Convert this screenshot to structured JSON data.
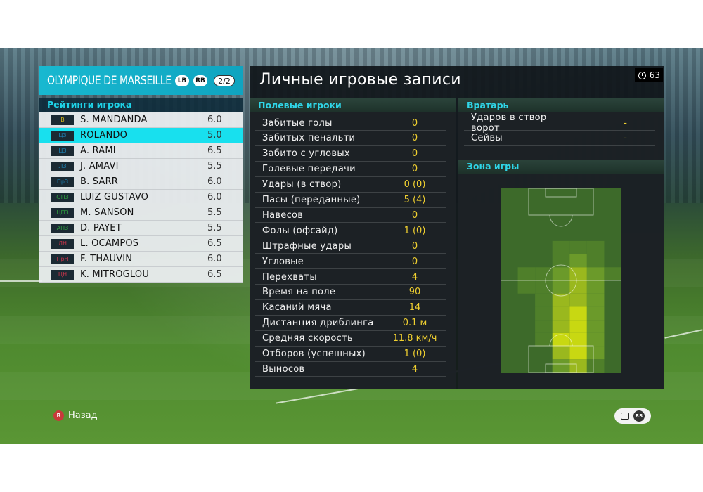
{
  "team": {
    "name": "OLYMPIQUE DE MARSEILLE",
    "lb": "LB",
    "rb": "RB",
    "page": "2/2"
  },
  "ratings_title": "Рейтинги игрока",
  "players": [
    {
      "pos": "В",
      "pos_color": "#d6b81c",
      "name": "S. MANDANDA",
      "rating": "6.0",
      "selected": false
    },
    {
      "pos": "ЦЗ",
      "pos_color": "#1d7fb0",
      "name": "ROLANDO",
      "rating": "5.0",
      "selected": true
    },
    {
      "pos": "ЦЗ",
      "pos_color": "#1d7fb0",
      "name": "A. RAMI",
      "rating": "6.5",
      "selected": false
    },
    {
      "pos": "ЛЗ",
      "pos_color": "#1d7fb0",
      "name": "J. AMAVI",
      "rating": "5.5",
      "selected": false
    },
    {
      "pos": "ПрЗ",
      "pos_color": "#1d7fb0",
      "name": "B. SARR",
      "rating": "6.0",
      "selected": false
    },
    {
      "pos": "ОПЗ",
      "pos_color": "#2e9e3e",
      "name": "LUIZ GUSTAVO",
      "rating": "6.0",
      "selected": false
    },
    {
      "pos": "ЦПЗ",
      "pos_color": "#2e9e3e",
      "name": "M. SANSON",
      "rating": "5.5",
      "selected": false
    },
    {
      "pos": "АПЗ",
      "pos_color": "#2e9e3e",
      "name": "D. PAYET",
      "rating": "5.5",
      "selected": false
    },
    {
      "pos": "ЛН",
      "pos_color": "#c8344a",
      "name": "L. OCAMPOS",
      "rating": "6.5",
      "selected": false
    },
    {
      "pos": "ПрН",
      "pos_color": "#c8344a",
      "name": "F. THAUVIN",
      "rating": "6.0",
      "selected": false
    },
    {
      "pos": "ЦН",
      "pos_color": "#c8344a",
      "name": "K. MITROGLOU",
      "rating": "6.5",
      "selected": false
    }
  ],
  "main": {
    "title": "Личные игровые записи",
    "timer": "63"
  },
  "field_players": {
    "heading": "Полевые игроки",
    "stats": [
      {
        "label": "Забитые голы",
        "value": "0"
      },
      {
        "label": "Забитых пенальти",
        "value": "0"
      },
      {
        "label": "Забито с угловых",
        "value": "0"
      },
      {
        "label": "Голевые передачи",
        "value": "0"
      },
      {
        "label": "Удары (в створ)",
        "value": "0 (0)"
      },
      {
        "label": "Пасы (переданные)",
        "value": "5 (4)"
      },
      {
        "label": "Навесов",
        "value": "0"
      },
      {
        "label": "Фолы (офсайд)",
        "value": "1 (0)"
      },
      {
        "label": "Штрафные удары",
        "value": "0"
      },
      {
        "label": "Угловые",
        "value": "0"
      },
      {
        "label": "Перехваты",
        "value": "4"
      },
      {
        "label": "Время на поле",
        "value": "90"
      },
      {
        "label": "Касаний мяча",
        "value": "14"
      },
      {
        "label": "Дистанция дриблинга",
        "value": "0.1 м"
      },
      {
        "label": "Средняя скорость",
        "value": "11.8 км/ч"
      },
      {
        "label": "Отборов (успешных)",
        "value": "1 (0)"
      },
      {
        "label": "Выносов",
        "value": "4"
      }
    ]
  },
  "goalkeeper": {
    "heading": "Вратарь",
    "stats": [
      {
        "label": "Ударов в створ ворот",
        "value": "-"
      },
      {
        "label": "Сейвы",
        "value": "-"
      }
    ]
  },
  "zone": {
    "heading": "Зона игры"
  },
  "footer": {
    "back_label": "Назад",
    "back_icon": "B",
    "rs_icon": "RS"
  }
}
